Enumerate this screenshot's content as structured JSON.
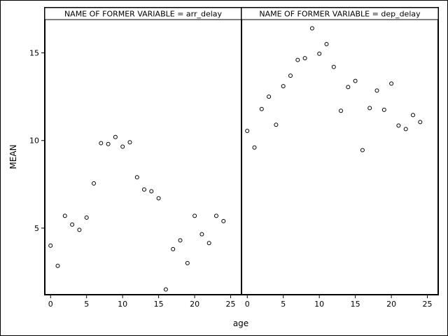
{
  "chart_data": {
    "type": "scatter",
    "title": "",
    "xlabel": "age",
    "ylabel": "MEAN",
    "xlim": [
      -0.8,
      26.5
    ],
    "ylim": [
      1.2,
      16.9
    ],
    "x_ticks": [
      0,
      5,
      10,
      15,
      20,
      25
    ],
    "y_ticks": [
      5,
      10,
      15
    ],
    "grid": false,
    "legend": "none",
    "marker": "open-circle",
    "panels": [
      {
        "label": "NAME OF FORMER VARIABLE = arr_delay",
        "x": [
          0,
          1,
          2,
          3,
          4,
          5,
          6,
          7,
          8,
          9,
          10,
          11,
          12,
          13,
          14,
          15,
          16,
          17,
          18,
          19,
          20,
          21,
          22,
          23,
          24
        ],
        "y": [
          4.0,
          2.85,
          5.7,
          5.2,
          4.9,
          5.6,
          7.55,
          9.85,
          9.8,
          10.2,
          9.65,
          9.9,
          7.9,
          7.2,
          7.1,
          6.7,
          1.5,
          3.8,
          4.3,
          3.0,
          5.7,
          4.65,
          4.15,
          5.7,
          5.4
        ]
      },
      {
        "label": "NAME OF FORMER VARIABLE = dep_delay",
        "x": [
          0,
          1,
          2,
          3,
          4,
          5,
          6,
          7,
          8,
          9,
          10,
          11,
          12,
          13,
          14,
          15,
          16,
          17,
          18,
          19,
          20,
          21,
          22,
          23,
          24
        ],
        "y": [
          10.55,
          9.6,
          11.8,
          12.5,
          10.9,
          13.1,
          13.7,
          14.6,
          14.7,
          16.4,
          14.95,
          15.5,
          14.2,
          11.7,
          13.05,
          13.4,
          9.45,
          11.85,
          12.85,
          11.75,
          13.25,
          10.85,
          10.65,
          11.45,
          11.05
        ]
      }
    ]
  }
}
